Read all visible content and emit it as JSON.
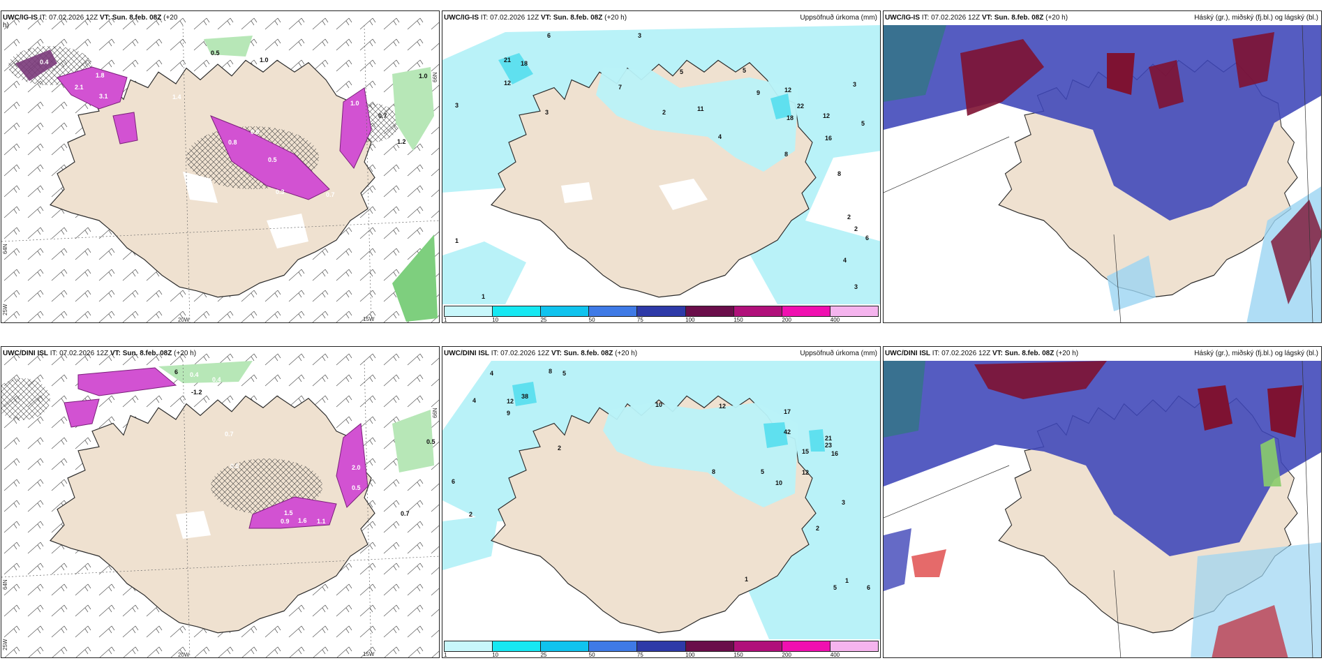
{
  "colors": {
    "land": "#efe1d0",
    "coast": "#2a2a2a",
    "sea": "#ffffff",
    "precip_light": "#b9f2f8",
    "precip_mid": "#5fe0ef",
    "snow_magenta": "#d252d2",
    "snow_magenta_dark": "#7a1f7a",
    "green_precip": "#7ecf7e",
    "cloud_high": "#7e1232",
    "cloud_mid": "#3e45b8",
    "cloud_low": "#9bd4f2"
  },
  "panels": {
    "top_left": {
      "model": "UWC/IG-IS",
      "it_prefix": "IT:",
      "it": "07.02.2026 12Z",
      "vt_prefix": "VT:",
      "vt": "Sun. 8.feb. 08Z",
      "lead": "(+20",
      "lead_wrap": "h)",
      "lon_labels": [
        "20W",
        "15W"
      ],
      "lat_labels": [
        "66N",
        "64N",
        "25W"
      ],
      "values": [
        "0.5",
        "1.0",
        "0.4",
        "1.8",
        "2.1",
        "3.1",
        "1.4",
        "1.0",
        "0.7",
        "1.0",
        "0.8",
        "0.5",
        "0.6",
        "0.3",
        "0.7",
        "1.2"
      ]
    },
    "top_mid": {
      "model": "UWC/IG-IS",
      "it_prefix": "IT:",
      "it": "07.02.2026 12Z",
      "vt_prefix": "VT:",
      "vt": "Sun. 8.feb. 08Z",
      "lead": "(+20 h)",
      "right_title": "Uppsöfnuð úrkoma (mm)",
      "values": [
        "6",
        "3",
        "21",
        "18",
        "12",
        "3",
        "7",
        "2",
        "5",
        "11",
        "4",
        "5",
        "9",
        "8",
        "12",
        "22",
        "18",
        "12",
        "16",
        "3",
        "5",
        "8",
        "2",
        "2",
        "6",
        "4",
        "3",
        "1",
        "1",
        "3"
      ]
    },
    "top_right": {
      "model": "UWC/IG-IS",
      "it_prefix": "IT:",
      "it": "07.02.2026 12Z",
      "vt_prefix": "VT:",
      "vt": "Sun. 8.feb. 08Z",
      "lead": "(+20 h)",
      "right_title": "Háský (gr.), miðský (fj.bl.) og lágský (bl.)"
    },
    "bottom_left": {
      "model": "UWC/DINI ISL",
      "it_prefix": "IT:",
      "it": "07.02.2026 12Z",
      "vt_prefix": "VT:",
      "vt": "Sun. 8.feb. 08Z",
      "lead": "(+20 h)",
      "lon_labels": [
        "20W",
        "15W"
      ],
      "lat_labels": [
        "66N",
        "64N",
        "25W"
      ],
      "values": [
        "6",
        "0.4",
        "0.4",
        "-1.2",
        "2.7",
        "0.7",
        "0.5",
        "2.0",
        "0.5",
        "1.5",
        "0.9",
        "1.6",
        "1.1",
        "0.5",
        "0.7"
      ]
    },
    "bottom_mid": {
      "model": "UWC/DINI ISL",
      "it_prefix": "IT:",
      "it": "07.02.2026 12Z",
      "vt_prefix": "VT:",
      "vt": "Sun. 8.feb. 08Z",
      "lead": "(+20 h)",
      "right_title": "Uppsöfnuð úrkoma (mm)",
      "values": [
        "4",
        "8",
        "5",
        "38",
        "12",
        "9",
        "2",
        "10",
        "12",
        "17",
        "42",
        "21",
        "23",
        "15",
        "16",
        "12",
        "10",
        "8",
        "5",
        "3",
        "2",
        "4",
        "6",
        "2",
        "1",
        "5",
        "6",
        "1"
      ]
    },
    "bottom_right": {
      "model": "UWC/DINI ISL",
      "it_prefix": "IT:",
      "it": "07.02.2026 12Z",
      "vt_prefix": "VT:",
      "vt": "Sun. 8.feb. 08Z",
      "lead": "(+20 h)",
      "right_title": "Háský (gr.), miðský (fj.bl.) og lágský (bl.)"
    }
  },
  "precip_legend": {
    "ticks": [
      "1",
      "10",
      "25",
      "50",
      "75",
      "100",
      "150",
      "200",
      "400"
    ],
    "colors": [
      "#c8f7fb",
      "#16e8f2",
      "#10c3ee",
      "#3f7ae6",
      "#2e3aa8",
      "#6a0e4a",
      "#b0107a",
      "#f010b0",
      "#f5b4ee"
    ]
  }
}
